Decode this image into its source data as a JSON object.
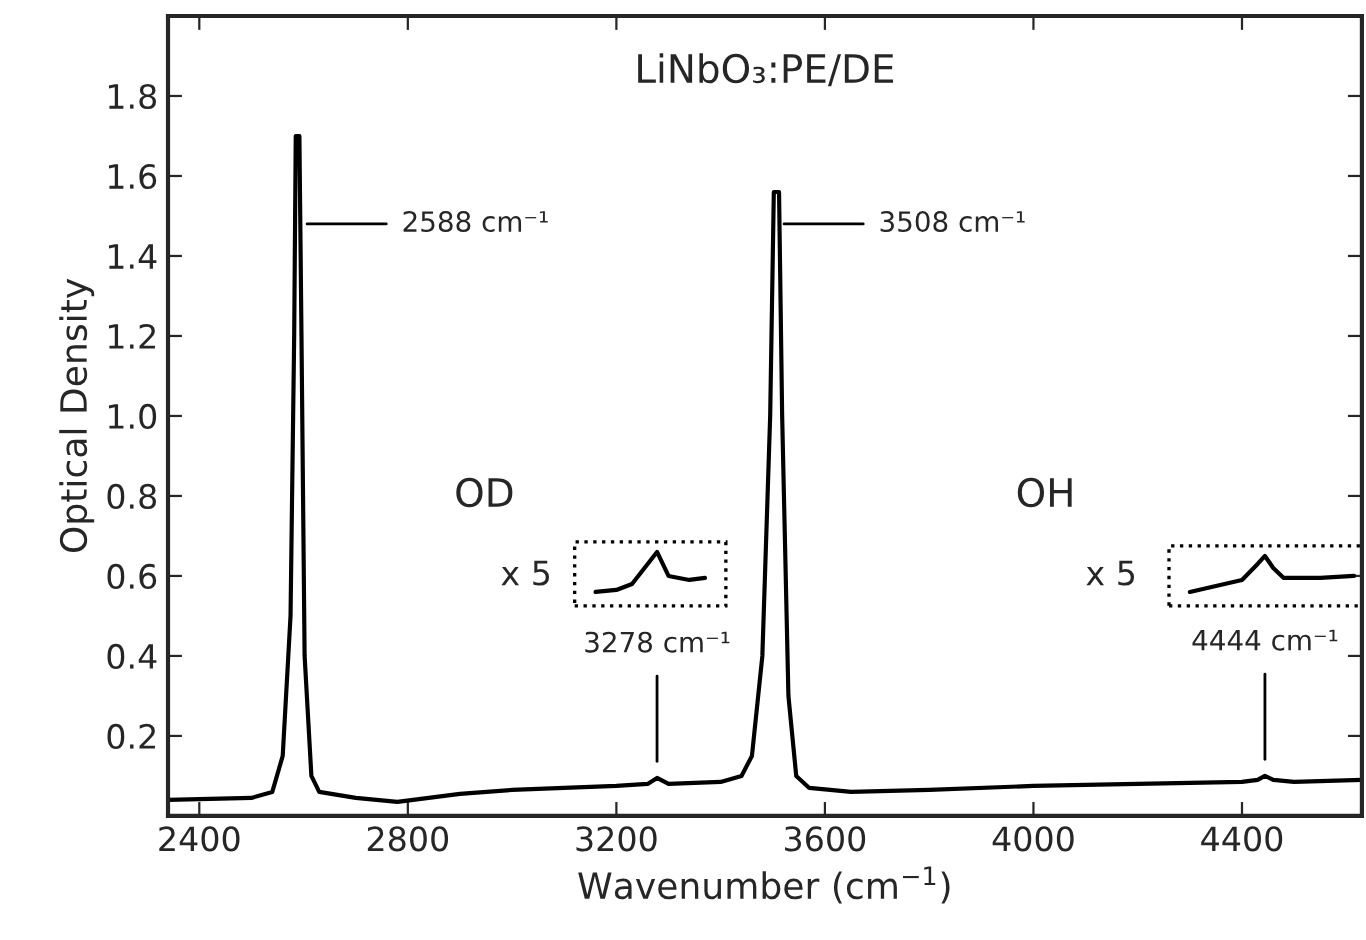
{
  "chart_data": {
    "type": "line",
    "title": "LiNbO₃:PE/DE",
    "xlabel": "Wavenumber (cm$^{−1}$)",
    "ylabel": "Optical Density",
    "xlim": [
      2340,
      4630
    ],
    "ylim": [
      0,
      2.0
    ],
    "xticks": [
      2400,
      2800,
      3200,
      3600,
      4000,
      4400
    ],
    "yticks": [
      0.2,
      0.4,
      0.6,
      0.8,
      {
        "value": 1.0,
        "label": "1.0"
      },
      1.2,
      1.4,
      1.6,
      1.8
    ],
    "grid": false,
    "marker": "none",
    "line_style": "solid",
    "series": [
      {
        "color": "#000000",
        "x": [
          2340,
          2500,
          2540,
          2560,
          2575,
          2582,
          2585,
          2592,
          2596,
          2602,
          2615,
          2630,
          2700,
          2780,
          2900,
          3000,
          3200,
          3260,
          3278,
          3300,
          3400,
          3440,
          3460,
          3480,
          3495,
          3502,
          3512,
          3518,
          3530,
          3545,
          3570,
          3650,
          3800,
          4000,
          4200,
          4400,
          4430,
          4444,
          4460,
          4500,
          4630
        ],
        "values": [
          0.04,
          0.045,
          0.06,
          0.15,
          0.5,
          1.2,
          1.7,
          1.7,
          1.2,
          0.4,
          0.1,
          0.06,
          0.045,
          0.035,
          0.055,
          0.065,
          0.075,
          0.08,
          0.095,
          0.08,
          0.085,
          0.1,
          0.15,
          0.4,
          1.0,
          1.56,
          1.56,
          1.0,
          0.3,
          0.1,
          0.07,
          0.06,
          0.065,
          0.075,
          0.08,
          0.085,
          0.09,
          0.1,
          0.09,
          0.085,
          0.09
        ]
      },
      {
        "color": "#000000",
        "x": [
          3160,
          3200,
          3230,
          3260,
          3278,
          3300,
          3340,
          3370
        ],
        "values": [
          0.56,
          0.565,
          0.58,
          0.63,
          0.66,
          0.6,
          0.59,
          0.595
        ]
      },
      {
        "color": "#000000",
        "x": [
          4300,
          4350,
          4400,
          4430,
          4444,
          4460,
          4480,
          4550,
          4615
        ],
        "values": [
          0.56,
          0.575,
          0.59,
          0.63,
          0.65,
          0.62,
          0.595,
          0.595,
          0.6
        ]
      }
    ],
    "annotations": [
      "2588 cm⁻¹",
      "3508 cm⁻¹",
      {
        "text": "3278 cm⁻¹",
        "x": 3278,
        "y": 0.095
      },
      {
        "text": "4444 cm⁻¹",
        "x": 4444,
        "y": 0.1
      },
      "OD",
      "OH",
      "x 5",
      "x 5"
    ]
  }
}
